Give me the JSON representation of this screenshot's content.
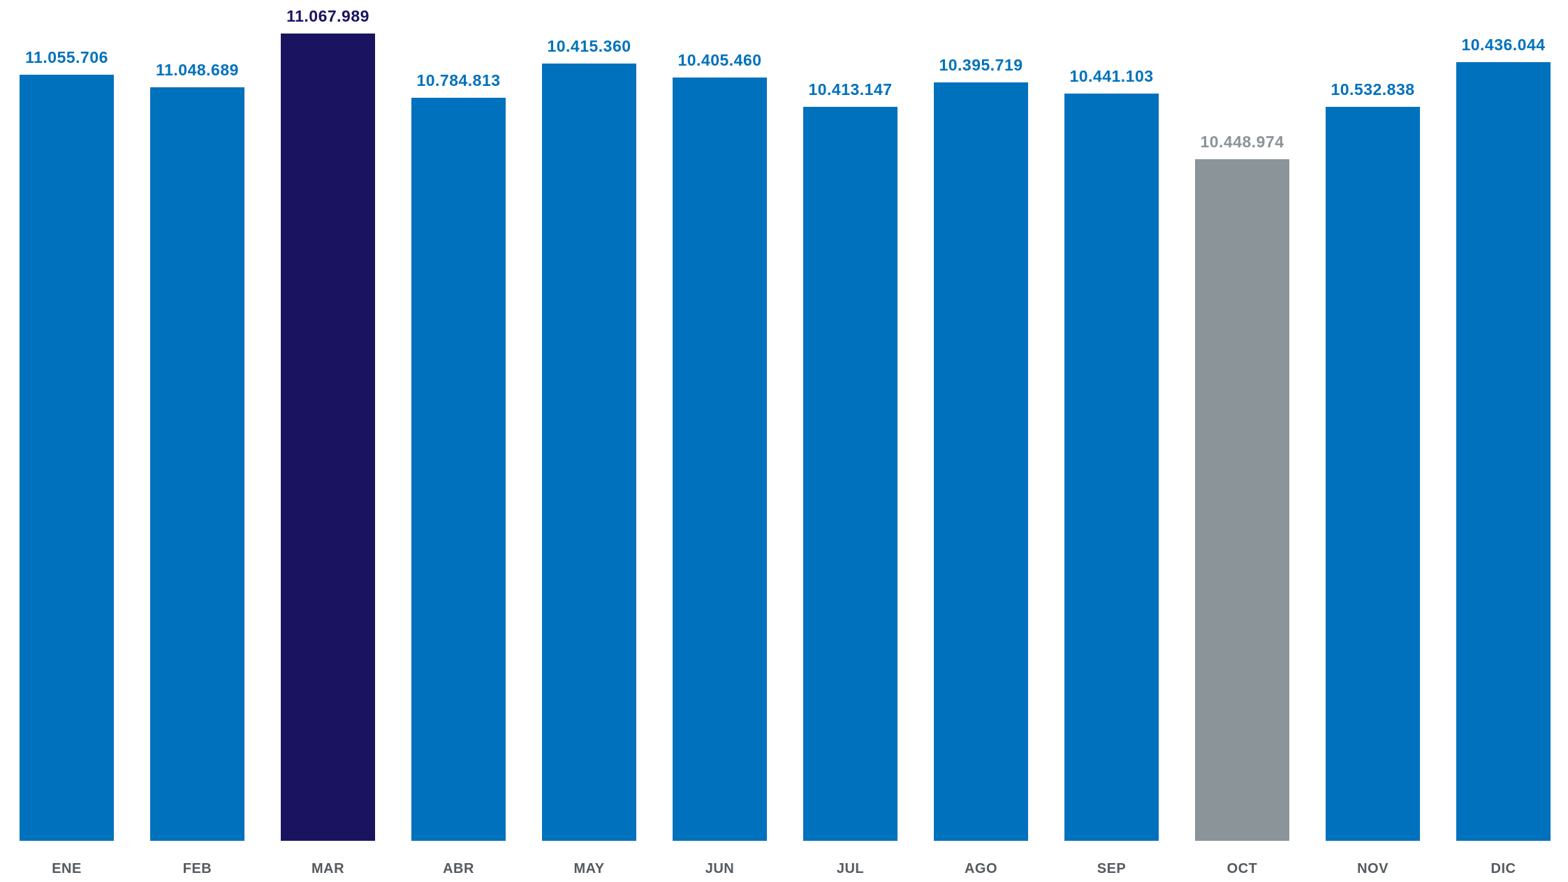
{
  "chart_data": {
    "type": "bar",
    "categories": [
      "ENE",
      "FEB",
      "MAR",
      "ABR",
      "MAY",
      "JUN",
      "JUL",
      "AGO",
      "SEP",
      "OCT",
      "NOV",
      "DIC"
    ],
    "values": [
      11055706,
      11048689,
      11067989,
      10784813,
      10415360,
      10405460,
      10413147,
      10395719,
      10441103,
      10448974,
      10532838,
      10436044
    ],
    "value_labels": [
      "11.055.706",
      "11.048.689",
      "11.067.989",
      "10.784.813",
      "10.415.360",
      "10.405.460",
      "10.413.147",
      "10.395.719",
      "10.441.103",
      "10.448.974",
      "10.532.838",
      "10.436.044"
    ],
    "bar_colors": [
      "#0071bc",
      "#0071bc",
      "#1a1460",
      "#0071bc",
      "#0071bc",
      "#0071bc",
      "#0071bc",
      "#0071bc",
      "#0071bc",
      "#8a9499",
      "#0071bc",
      "#0071bc"
    ],
    "label_colors": [
      "#0071bc",
      "#0071bc",
      "#1a1460",
      "#0071bc",
      "#0071bc",
      "#0071bc",
      "#0071bc",
      "#0071bc",
      "#0071bc",
      "#8a9499",
      "#0071bc",
      "#0071bc"
    ],
    "title": "",
    "xlabel": "",
    "ylabel": "",
    "grid": false,
    "legend": "none"
  }
}
